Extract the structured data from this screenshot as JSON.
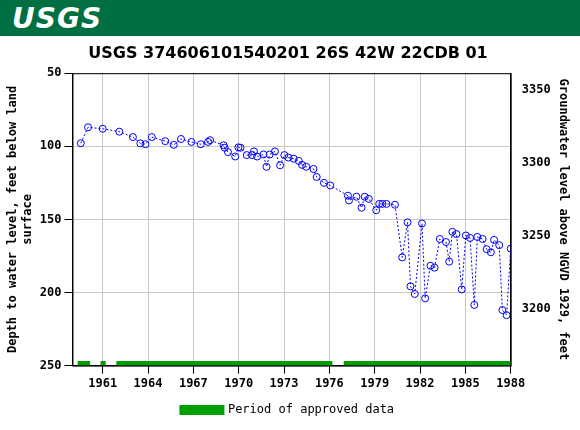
{
  "header": {
    "logo": "USGS"
  },
  "chart_data": {
    "type": "line",
    "title": "USGS 374606101540201 26S 42W 22CDB 01",
    "y_label": [
      "Depth to water level, feet below land",
      "surface"
    ],
    "y2_label": "Groundwater level above NGVD 1929, feet",
    "xlim": [
      1959,
      1988
    ],
    "xticks": [
      1961,
      1964,
      1967,
      1970,
      1973,
      1976,
      1979,
      1982,
      1985,
      1988
    ],
    "ylim": [
      250,
      50
    ],
    "yticks": [
      50,
      100,
      150,
      200,
      250
    ],
    "y2lim": [
      3161.3,
      3361.3
    ],
    "y2ticks": [
      3200,
      3250,
      3300,
      3350
    ],
    "grid": true,
    "legend": "bottom",
    "series": [
      {
        "color": "#0000ff",
        "marker": "circle",
        "line_style": "dotted",
        "x": [
          1959.55,
          1960.03,
          1961.0,
          1962.1,
          1963.0,
          1963.49,
          1963.83,
          1964.25,
          1965.14,
          1965.7,
          1966.18,
          1966.87,
          1967.49,
          1967.97,
          1968.11,
          1969.0,
          1969.07,
          1969.29,
          1969.77,
          1969.98,
          1970.12,
          1970.53,
          1970.88,
          1971.01,
          1971.22,
          1971.64,
          1971.84,
          1972.05,
          1972.4,
          1972.74,
          1973.02,
          1973.29,
          1973.64,
          1973.98,
          1974.19,
          1974.47,
          1974.95,
          1975.16,
          1975.64,
          1976.06,
          1977.23,
          1977.3,
          1977.79,
          1978.13,
          1978.34,
          1978.61,
          1979.1,
          1979.3,
          1979.51,
          1979.78,
          1980.34,
          1980.82,
          1981.17,
          1981.37,
          1981.65,
          1982.13,
          1982.34,
          1982.69,
          1982.96,
          1983.31,
          1983.72,
          1983.93,
          1984.14,
          1984.41,
          1984.76,
          1985.03,
          1985.31,
          1985.59,
          1985.79,
          1986.14,
          1986.41,
          1986.69,
          1986.9,
          1987.24,
          1987.45,
          1987.73,
          1988.0
        ],
        "values": [
          97.9,
          87,
          88,
          90,
          93.7,
          98,
          98.6,
          93.7,
          96.5,
          99,
          95,
          97,
          98.6,
          97,
          95.8,
          99.3,
          101,
          104,
          107,
          100.7,
          101,
          106,
          106,
          103.5,
          107,
          105.6,
          114,
          105.6,
          103.5,
          113,
          106,
          107.7,
          108.5,
          110,
          112.7,
          114,
          115.5,
          121,
          125,
          126.8,
          133.8,
          137,
          134.5,
          142,
          134.5,
          136,
          143.7,
          139.4,
          139.4,
          139.4,
          140,
          176,
          152,
          195.8,
          201,
          152.8,
          204,
          181.7,
          183,
          163.4,
          165.5,
          178.9,
          158.5,
          160,
          197.9,
          161,
          162.7,
          208.5,
          162,
          163.4,
          170.4,
          172.5,
          164,
          167.6,
          212,
          215.5,
          170
        ]
      },
      {
        "name": "Period of approved data",
        "color": "#00a000",
        "line_style": "solid",
        "x": [
          1959.34,
          1960.17,
          1960.5,
          1960.86,
          1961.2,
          1961.5,
          1961.9,
          1976.2,
          1976.5,
          1976.95,
          1988
        ],
        "values": [
          248.5,
          248.5,
          null,
          248.5,
          248.5,
          null,
          248.5,
          248.5,
          null,
          248.5,
          248.5
        ]
      }
    ]
  }
}
